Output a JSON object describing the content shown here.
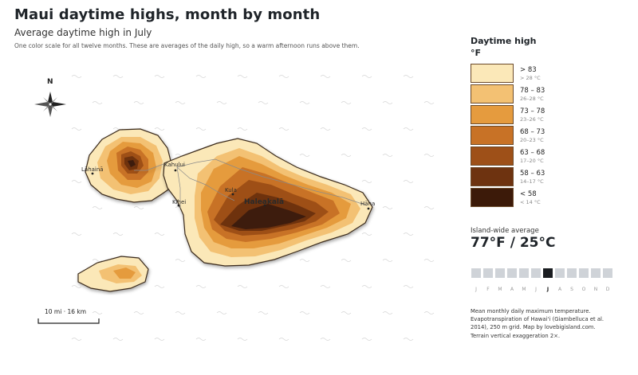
{
  "header": {
    "title": "Maui daytime highs, month by month",
    "subtitle": "Average daytime high in July",
    "note": "One color scale for all twelve months. These are averages of the daily high, so a warm afternoon runs above them."
  },
  "map": {
    "north_label": "N",
    "scale_label": "10 mi · 16 km",
    "places": [
      "Lāhainā",
      "Kahului",
      "Kula",
      "Kīhei",
      "Haleakalā",
      "Hāna"
    ],
    "water_pattern": "wave-glyphs"
  },
  "legend": {
    "title": "Daytime high",
    "unit": "°F",
    "bins": [
      {
        "f": "> 83",
        "c": "> 28 °C",
        "color": "#fbe8b8"
      },
      {
        "f": "78 – 83",
        "c": "26–28 °C",
        "color": "#f3c173"
      },
      {
        "f": "73 – 78",
        "c": "23–26 °C",
        "color": "#e59b3e"
      },
      {
        "f": "68 – 73",
        "c": "20–23 °C",
        "color": "#c87226"
      },
      {
        "f": "63 – 68",
        "c": "17–20 °C",
        "color": "#9e5018"
      },
      {
        "f": "58 – 63",
        "c": "14–17 °C",
        "color": "#6e3310"
      },
      {
        "f": "< 58",
        "c": "< 14 °C",
        "color": "#3c1a09"
      }
    ]
  },
  "summary": {
    "label": "Island-wide average",
    "value": "77°F / 25°C"
  },
  "months": {
    "letters": [
      "J",
      "F",
      "M",
      "A",
      "M",
      "J",
      "J",
      "A",
      "S",
      "O",
      "N",
      "D"
    ],
    "active_index": 6
  },
  "credit": "Mean monthly daily maximum temperature. Evapotranspiration of Hawai‘i (Giambelluca et al. 2014), 250 m grid. Map by lovebigisland.com. Terrain vertical exaggeration 2×."
}
